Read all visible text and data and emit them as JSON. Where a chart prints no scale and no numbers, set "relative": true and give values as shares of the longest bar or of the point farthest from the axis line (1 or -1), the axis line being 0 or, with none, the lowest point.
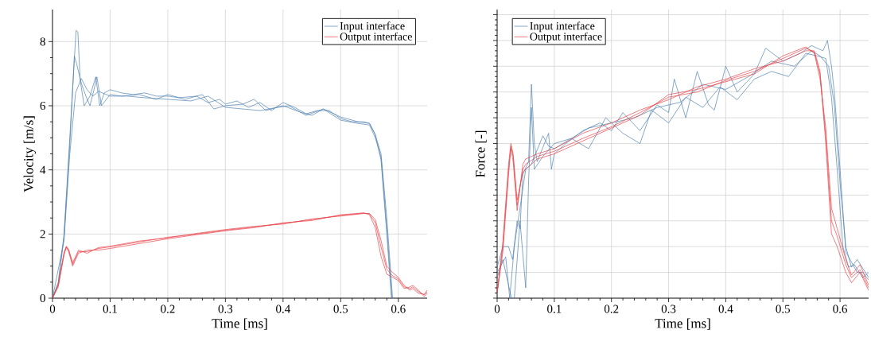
{
  "chart_data": [
    {
      "type": "line",
      "xlabel": "Time [ms]",
      "ylabel": "Velocity [m/s]",
      "xlim": [
        0,
        0.65
      ],
      "ylim": [
        0,
        9
      ],
      "xticks": [
        0,
        0.1,
        0.2,
        0.3,
        0.4,
        0.5,
        0.6
      ],
      "yticks": [
        0,
        2,
        4,
        6,
        8
      ],
      "grid": true,
      "legend": "top right",
      "series": [
        {
          "name": "Input interface",
          "color": "#4f81b0",
          "x": [
            0,
            0.01,
            0.02,
            0.03,
            0.038,
            0.041,
            0.044,
            0.048,
            0.055,
            0.065,
            0.075,
            0.082,
            0.09,
            0.1,
            0.12,
            0.14,
            0.16,
            0.18,
            0.2,
            0.22,
            0.25,
            0.27,
            0.29,
            0.3,
            0.32,
            0.34,
            0.36,
            0.38,
            0.4,
            0.42,
            0.44,
            0.46,
            0.48,
            0.5,
            0.52,
            0.54,
            0.55,
            0.56,
            0.57,
            0.58,
            0.588
          ],
          "values": [
            0,
            0.5,
            2.0,
            5.0,
            7.5,
            8.35,
            8.3,
            6.8,
            6.0,
            6.3,
            6.9,
            6.0,
            6.4,
            6.5,
            6.4,
            6.35,
            6.4,
            6.3,
            6.3,
            6.25,
            6.3,
            6.1,
            6.2,
            6.05,
            6.15,
            5.95,
            6.1,
            5.85,
            6.1,
            5.95,
            5.75,
            5.85,
            5.85,
            5.6,
            5.5,
            5.5,
            5.45,
            5.1,
            4.3,
            2.0,
            0
          ]
        },
        {
          "color": "#4f81b0",
          "x": [
            0,
            0.01,
            0.02,
            0.03,
            0.038,
            0.042,
            0.05,
            0.058,
            0.065,
            0.072,
            0.077,
            0.085,
            0.1,
            0.12,
            0.15,
            0.18,
            0.2,
            0.23,
            0.26,
            0.28,
            0.3,
            0.33,
            0.35,
            0.37,
            0.4,
            0.43,
            0.45,
            0.47,
            0.5,
            0.53,
            0.55,
            0.56,
            0.57,
            0.58,
            0.589
          ],
          "values": [
            0,
            0.45,
            1.9,
            4.8,
            7.55,
            7.3,
            6.7,
            6.3,
            6.0,
            6.5,
            6.9,
            6.0,
            6.35,
            6.3,
            6.35,
            6.2,
            6.35,
            6.2,
            6.35,
            5.9,
            6.0,
            6.05,
            6.2,
            5.85,
            6.0,
            5.8,
            5.7,
            5.9,
            5.55,
            5.45,
            5.4,
            5.0,
            4.4,
            2.2,
            0
          ]
        },
        {
          "color": "#4f81b0",
          "x": [
            0,
            0.02,
            0.03,
            0.04,
            0.05,
            0.06,
            0.07,
            0.08,
            0.1,
            0.13,
            0.16,
            0.2,
            0.24,
            0.27,
            0.3,
            0.33,
            0.36,
            0.39,
            0.41,
            0.44,
            0.47,
            0.5,
            0.53,
            0.55,
            0.56,
            0.57,
            0.58,
            0.59
          ],
          "values": [
            0,
            1.8,
            4.5,
            6.4,
            6.85,
            6.5,
            6.3,
            6.45,
            6.3,
            6.3,
            6.25,
            6.2,
            6.15,
            6.3,
            5.95,
            5.9,
            5.85,
            5.95,
            6.0,
            5.7,
            5.9,
            5.65,
            5.5,
            5.45,
            5.1,
            4.5,
            2.5,
            0
          ]
        },
        {
          "name": "Output interface",
          "color": "#e8434a",
          "x": [
            0,
            0.01,
            0.02,
            0.024,
            0.028,
            0.035,
            0.045,
            0.06,
            0.08,
            0.1,
            0.15,
            0.2,
            0.25,
            0.3,
            0.35,
            0.4,
            0.45,
            0.5,
            0.54,
            0.55,
            0.56,
            0.57,
            0.58,
            0.59,
            0.6,
            0.61,
            0.62,
            0.625,
            0.635,
            0.645,
            0.65
          ],
          "values": [
            0,
            0.4,
            1.4,
            1.6,
            1.5,
            1.05,
            1.45,
            1.45,
            1.55,
            1.6,
            1.75,
            1.9,
            2.0,
            2.12,
            2.22,
            2.33,
            2.45,
            2.58,
            2.65,
            2.63,
            2.35,
            1.6,
            0.9,
            0.7,
            0.6,
            0.35,
            0.3,
            0.35,
            0.2,
            0.1,
            0.2
          ]
        },
        {
          "color": "#e8434a",
          "x": [
            0,
            0.01,
            0.02,
            0.024,
            0.028,
            0.035,
            0.045,
            0.06,
            0.08,
            0.1,
            0.15,
            0.2,
            0.25,
            0.3,
            0.35,
            0.4,
            0.45,
            0.5,
            0.54,
            0.55,
            0.56,
            0.57,
            0.58,
            0.59,
            0.6,
            0.61,
            0.62,
            0.625,
            0.635,
            0.645,
            0.65
          ],
          "values": [
            0,
            0.35,
            1.35,
            1.58,
            1.45,
            1.0,
            1.4,
            1.5,
            1.5,
            1.55,
            1.7,
            1.85,
            1.98,
            2.1,
            2.2,
            2.35,
            2.42,
            2.6,
            2.66,
            2.6,
            2.2,
            1.3,
            0.75,
            0.65,
            0.55,
            0.3,
            0.35,
            0.4,
            0.25,
            0.05,
            0.15
          ]
        },
        {
          "color": "#e8434a",
          "x": [
            0,
            0.01,
            0.02,
            0.024,
            0.028,
            0.035,
            0.045,
            0.06,
            0.08,
            0.1,
            0.15,
            0.2,
            0.25,
            0.3,
            0.35,
            0.4,
            0.45,
            0.5,
            0.54,
            0.55,
            0.56,
            0.57,
            0.58,
            0.59,
            0.6,
            0.61,
            0.62,
            0.625,
            0.635,
            0.645,
            0.65
          ],
          "values": [
            0,
            0.42,
            1.42,
            1.62,
            1.52,
            1.1,
            1.5,
            1.4,
            1.58,
            1.62,
            1.78,
            1.88,
            2.02,
            2.14,
            2.24,
            2.31,
            2.47,
            2.56,
            2.64,
            2.64,
            2.45,
            1.8,
            1.0,
            0.8,
            0.65,
            0.4,
            0.25,
            0.3,
            0.15,
            0.12,
            0.25
          ]
        }
      ]
    },
    {
      "type": "line",
      "xlabel": "Time [ms]",
      "ylabel": "Force [-]",
      "relative": true,
      "tick_labels": "x",
      "xlim": [
        0,
        0.65
      ],
      "xticks": [
        0,
        0.1,
        0.2,
        0.3,
        0.4,
        0.5,
        0.6
      ],
      "grid": true,
      "legend": "top left",
      "series": [
        {
          "name": "Input interface",
          "color": "#4f81b0",
          "x": [
            0,
            0.01,
            0.02,
            0.027,
            0.035,
            0.04,
            0.045,
            0.055,
            0.06,
            0.065,
            0.07,
            0.09,
            0.095,
            0.1,
            0.12,
            0.15,
            0.18,
            0.2,
            0.22,
            0.25,
            0.28,
            0.3,
            0.31,
            0.33,
            0.35,
            0.37,
            0.38,
            0.4,
            0.42,
            0.45,
            0.47,
            0.5,
            0.53,
            0.55,
            0.57,
            0.578,
            0.585,
            0.59,
            0.6,
            0.61,
            0.62,
            0.63,
            0.64,
            0.65
          ],
          "values": [
            0.12,
            0.2,
            0.2,
            0.15,
            0.3,
            0.27,
            0.48,
            0.53,
            0.83,
            0.6,
            0.53,
            0.64,
            0.5,
            0.56,
            0.6,
            0.65,
            0.68,
            0.65,
            0.72,
            0.65,
            0.75,
            0.72,
            0.85,
            0.7,
            0.88,
            0.75,
            0.73,
            0.9,
            0.8,
            0.87,
            0.97,
            0.92,
            0.95,
            0.98,
            0.96,
            1.0,
            0.9,
            0.8,
            0.5,
            0.18,
            0.14,
            0.1,
            0.1,
            0.07
          ]
        },
        {
          "color": "#4f81b0",
          "x": [
            0,
            0.01,
            0.02,
            0.025,
            0.03,
            0.04,
            0.05,
            0.055,
            0.06,
            0.065,
            0.08,
            0.1,
            0.13,
            0.16,
            0.19,
            0.22,
            0.25,
            0.27,
            0.3,
            0.33,
            0.36,
            0.39,
            0.42,
            0.45,
            0.48,
            0.51,
            0.54,
            0.56,
            0.575,
            0.585,
            0.595,
            0.605,
            0.615,
            0.625,
            0.64,
            0.65
          ],
          "values": [
            0.08,
            0.15,
            0.05,
            0,
            0,
            0.3,
            0.04,
            0.45,
            0.74,
            0.5,
            0.55,
            0.6,
            0.62,
            0.58,
            0.7,
            0.64,
            0.6,
            0.73,
            0.68,
            0.78,
            0.74,
            0.82,
            0.77,
            0.85,
            0.88,
            0.86,
            0.95,
            0.94,
            0.93,
            0.78,
            0.5,
            0.2,
            0.12,
            0.13,
            0.08,
            0.1
          ]
        },
        {
          "color": "#4f81b0",
          "x": [
            0,
            0.015,
            0.022,
            0.03,
            0.04,
            0.05,
            0.06,
            0.08,
            0.09,
            0.1,
            0.13,
            0.16,
            0.2,
            0.24,
            0.28,
            0.32,
            0.36,
            0.4,
            0.44,
            0.48,
            0.52,
            0.55,
            0.565,
            0.58,
            0.59,
            0.6,
            0.61,
            0.62,
            0.63,
            0.65
          ],
          "values": [
            0.1,
            0.16,
            0,
            0.2,
            0.35,
            0.5,
            0.52,
            0.63,
            0.59,
            0.58,
            0.62,
            0.66,
            0.68,
            0.7,
            0.74,
            0.76,
            0.83,
            0.81,
            0.86,
            0.92,
            0.9,
            0.96,
            0.94,
            0.9,
            0.75,
            0.45,
            0.2,
            0.12,
            0.15,
            0.08
          ]
        },
        {
          "name": "Output interface",
          "color": "#e8434a",
          "x": [
            0,
            0.01,
            0.02,
            0.024,
            0.028,
            0.035,
            0.045,
            0.05,
            0.07,
            0.1,
            0.15,
            0.2,
            0.25,
            0.3,
            0.35,
            0.4,
            0.45,
            0.5,
            0.54,
            0.555,
            0.565,
            0.575,
            0.585,
            0.595,
            0.61,
            0.62,
            0.635,
            0.65
          ],
          "values": [
            0.02,
            0.2,
            0.5,
            0.59,
            0.55,
            0.36,
            0.5,
            0.52,
            0.55,
            0.57,
            0.62,
            0.665,
            0.72,
            0.78,
            0.8,
            0.845,
            0.88,
            0.93,
            0.97,
            0.955,
            0.87,
            0.63,
            0.3,
            0.24,
            0.13,
            0.08,
            0.11,
            0.04
          ]
        },
        {
          "color": "#e8434a",
          "x": [
            0,
            0.01,
            0.02,
            0.024,
            0.028,
            0.035,
            0.045,
            0.05,
            0.07,
            0.1,
            0.15,
            0.2,
            0.25,
            0.3,
            0.35,
            0.4,
            0.45,
            0.5,
            0.54,
            0.555,
            0.565,
            0.575,
            0.585,
            0.595,
            0.61,
            0.62,
            0.635,
            0.65
          ],
          "values": [
            0.02,
            0.18,
            0.48,
            0.58,
            0.53,
            0.34,
            0.52,
            0.54,
            0.56,
            0.58,
            0.64,
            0.68,
            0.73,
            0.77,
            0.82,
            0.85,
            0.89,
            0.92,
            0.96,
            0.96,
            0.88,
            0.6,
            0.25,
            0.2,
            0.1,
            0.06,
            0.1,
            0.03
          ]
        },
        {
          "color": "#e8434a",
          "x": [
            0,
            0.01,
            0.02,
            0.024,
            0.028,
            0.035,
            0.045,
            0.05,
            0.07,
            0.1,
            0.15,
            0.2,
            0.25,
            0.3,
            0.35,
            0.4,
            0.45,
            0.5,
            0.54,
            0.555,
            0.565,
            0.575,
            0.585,
            0.595,
            0.61,
            0.62,
            0.635,
            0.65
          ],
          "values": [
            0.02,
            0.22,
            0.52,
            0.6,
            0.56,
            0.38,
            0.49,
            0.5,
            0.54,
            0.56,
            0.61,
            0.66,
            0.71,
            0.79,
            0.81,
            0.84,
            0.87,
            0.94,
            0.975,
            0.95,
            0.85,
            0.66,
            0.35,
            0.27,
            0.15,
            0.09,
            0.13,
            0.05
          ]
        }
      ]
    }
  ]
}
